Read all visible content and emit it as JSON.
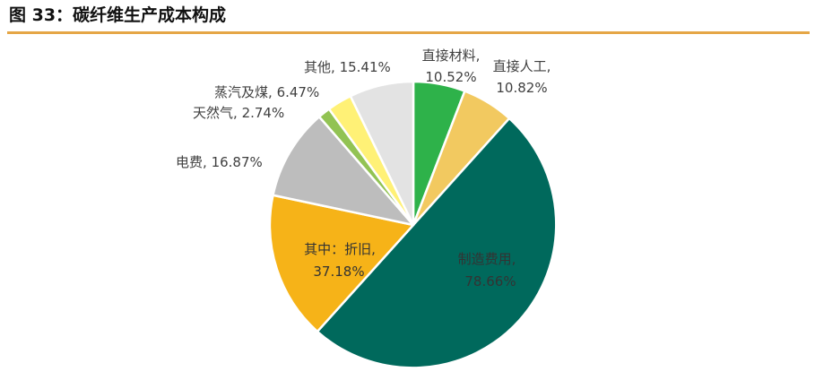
{
  "figure": {
    "title": "图 33：碳纤维生产成本构成",
    "rule_color": "#e5a646"
  },
  "chart_data": {
    "type": "pie",
    "title": "",
    "grid": false,
    "legend": "none",
    "slices": [
      {
        "key": "direct-material",
        "label": "直接材料,",
        "value_label": "10.52%",
        "value": 10.52,
        "color": "#2eb24a"
      },
      {
        "key": "direct-labor",
        "label": "直接人工,",
        "value_label": "10.82%",
        "value": 10.82,
        "color": "#f2c960"
      },
      {
        "key": "manufacturing",
        "label": "制造费用,",
        "value_label": "78.66%",
        "value": 78.66,
        "color": "#00695c"
      },
      {
        "key": "depreciation",
        "label": "其中：折旧,",
        "value_label": "37.18%",
        "value": 37.18,
        "color": "#f6b318"
      },
      {
        "key": "electricity",
        "label": "电费,",
        "value_label": "16.87%",
        "value": 16.87,
        "color": "#bdbdbd"
      },
      {
        "key": "natural-gas",
        "label": "天然气,",
        "value_label": "2.74%",
        "value": 2.74,
        "color": "#92c353"
      },
      {
        "key": "steam-coal",
        "label": "蒸汽及煤,",
        "value_label": "6.47%",
        "value": 6.47,
        "color": "#fff176"
      },
      {
        "key": "other",
        "label": "其他,",
        "value_label": "15.41%",
        "value": 15.41,
        "color": "#e3e3e3"
      }
    ]
  }
}
